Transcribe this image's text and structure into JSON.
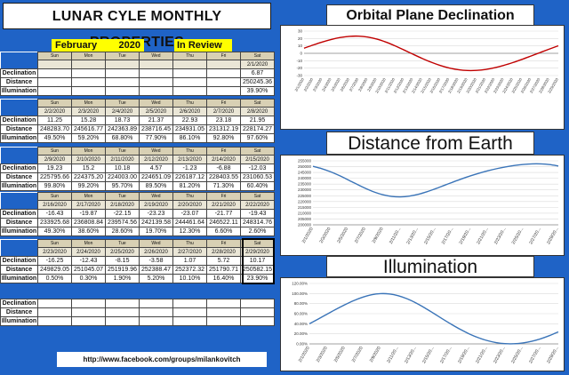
{
  "sheet": {
    "title": "LUNAR CYLE MONTHLY PROPERTIES",
    "month": "February",
    "year": "2020",
    "review_label": "In Review",
    "row_labels": [
      "Declination",
      "Distance",
      "Illumination"
    ],
    "days": [
      "Sun",
      "Mon",
      "Tue",
      "Wed",
      "Thu",
      "Fri",
      "Sat"
    ],
    "weeks": [
      {
        "dates": [
          "",
          "",
          "",
          "",
          "",
          "",
          "2/1/2020"
        ],
        "declination": [
          "",
          "",
          "",
          "",
          "",
          "",
          "6.87"
        ],
        "distance": [
          "",
          "",
          "",
          "",
          "",
          "",
          "250245.36"
        ],
        "illumination": [
          "",
          "",
          "",
          "",
          "",
          "",
          "39.90%"
        ]
      },
      {
        "dates": [
          "2/2/2020",
          "2/3/2020",
          "2/4/2020",
          "2/5/2020",
          "2/6/2020",
          "2/7/2020",
          "2/8/2020"
        ],
        "declination": [
          "11.25",
          "15.28",
          "18.73",
          "21.37",
          "22.93",
          "23.18",
          "21.95"
        ],
        "distance": [
          "248283.70",
          "245616.77",
          "242363.89",
          "238716.45",
          "234931.05",
          "231312.19",
          "228174.27"
        ],
        "illumination": [
          "49.50%",
          "59.20%",
          "68.80%",
          "77.90%",
          "86.10%",
          "92.80%",
          "97.60%"
        ]
      },
      {
        "dates": [
          "2/9/2020",
          "2/10/2020",
          "2/11/2020",
          "2/12/2020",
          "2/13/2020",
          "2/14/2020",
          "2/15/2020"
        ],
        "declination": [
          "19.23",
          "15.2",
          "10.18",
          "4.57",
          "-1.23",
          "-6.88",
          "-12.03"
        ],
        "distance": [
          "225795.66",
          "224375.20",
          "224003.00",
          "224651.09",
          "226187.12",
          "228403.55",
          "231060.53"
        ],
        "illumination": [
          "99.80%",
          "99.20%",
          "95.70%",
          "89.50%",
          "81.20%",
          "71.30%",
          "60.40%"
        ]
      },
      {
        "dates": [
          "2/16/2020",
          "2/17/2020",
          "2/18/2020",
          "2/19/2020",
          "2/20/2020",
          "2/21/2020",
          "2/22/2020"
        ],
        "declination": [
          "-16.43",
          "-19.87",
          "-22.15",
          "-23.23",
          "-23.07",
          "-21.77",
          "-19.43"
        ],
        "distance": [
          "233925.68",
          "236808.84",
          "239574.56",
          "242139.58",
          "244461.64",
          "246522.11",
          "248314.76"
        ],
        "illumination": [
          "49.30%",
          "38.60%",
          "28.60%",
          "19.70%",
          "12.30%",
          "6.60%",
          "2.60%"
        ]
      },
      {
        "dates": [
          "2/23/2020",
          "2/24/2020",
          "2/25/2020",
          "2/26/2020",
          "2/27/2020",
          "2/28/2020",
          "2/29/2020"
        ],
        "declination": [
          "-16.25",
          "-12.43",
          "-8.15",
          "-3.58",
          "1.07",
          "5.72",
          "10.17"
        ],
        "distance": [
          "249829.05",
          "251045.07",
          "251919.96",
          "252388.47",
          "252372.32",
          "251790.71",
          "250582.15"
        ],
        "illumination": [
          "0.50%",
          "0.30%",
          "1.90%",
          "5.20%",
          "10.10%",
          "16.40%",
          "23.90%"
        ]
      }
    ],
    "footer_link": "http://www.facebook.com/groups/milankovitch"
  },
  "chart_data": [
    {
      "type": "line",
      "title": "Orbital Plane Declination",
      "x": [
        "2/1/2020",
        "2/2/2020",
        "2/3/2020",
        "2/4/2020",
        "2/5/2020",
        "2/6/2020",
        "2/7/2020",
        "2/8/2020",
        "2/9/2020",
        "2/10/2020",
        "2/11/2020",
        "2/12/2020",
        "2/13/2020",
        "2/14/2020",
        "2/15/2020",
        "2/16/2020",
        "2/17/2020",
        "2/18/2020",
        "2/19/2020",
        "2/20/2020",
        "2/21/2020",
        "2/22/2020",
        "2/23/2020",
        "2/24/2020",
        "2/25/2020",
        "2/26/2020",
        "2/27/2020",
        "2/28/2020",
        "2/29/2020"
      ],
      "x_tick_labels": [
        "2/1/2020",
        "2/2/2020",
        "2/3/2020",
        "2/4/2020",
        "2/5/2020",
        "2/6/2020",
        "2/7/2020",
        "2/8/2020",
        "2/9/2020",
        "2/10/2020",
        "2/11/2020",
        "2/12/2020",
        "2/13/2020",
        "2/14/2020",
        "2/15/2020",
        "2/16/2020",
        "2/17/2020",
        "2/18/2020",
        "2/19/2020",
        "2/20/2020",
        "2/21/2020",
        "2/22/2020",
        "2/23/2020",
        "2/24/2020",
        "2/25/2020",
        "2/26/2020",
        "2/27/2020",
        "2/28/2020",
        "2/29/2020"
      ],
      "values": [
        6.87,
        11.25,
        15.28,
        18.73,
        21.37,
        22.93,
        23.18,
        21.95,
        19.23,
        15.2,
        10.18,
        4.57,
        -1.23,
        -6.88,
        -12.03,
        -16.43,
        -19.87,
        -22.15,
        -23.23,
        -23.07,
        -21.77,
        -19.43,
        -16.25,
        -12.43,
        -8.15,
        -3.58,
        1.07,
        5.72,
        10.17
      ],
      "ylim": [
        -30,
        30
      ],
      "yticks": [
        -30,
        -20,
        -10,
        0,
        10,
        20,
        30
      ],
      "ytick_labels": [
        "-30",
        "-20",
        "-10",
        "0",
        "10",
        "20",
        "30"
      ],
      "grid": true,
      "legend": "none",
      "color": "#c00000"
    },
    {
      "type": "line",
      "title": "Distance from Earth",
      "x": [
        "2/1/2020",
        "2/2/2020",
        "2/3/2020",
        "2/4/2020",
        "2/5/2020",
        "2/6/2020",
        "2/7/2020",
        "2/8/2020",
        "2/9/2020",
        "2/10/2020",
        "2/11/2020",
        "2/12/2020",
        "2/13/2020",
        "2/14/2020",
        "2/15/2020",
        "2/16/2020",
        "2/17/2020",
        "2/18/2020",
        "2/19/2020",
        "2/20/2020",
        "2/21/2020",
        "2/22/2020",
        "2/23/2020",
        "2/24/2020",
        "2/25/2020",
        "2/26/2020",
        "2/27/2020",
        "2/28/2020",
        "2/29/2020"
      ],
      "x_tick_labels": [
        "2/1/2020",
        "2/3/2020",
        "2/5/2020",
        "2/7/2020",
        "2/9/2020",
        "2/11/20...",
        "2/13/20...",
        "2/15/20...",
        "2/17/20...",
        "2/19/20...",
        "2/21/20...",
        "2/23/20...",
        "2/25/20...",
        "2/27/20...",
        "2/29/20..."
      ],
      "values": [
        250245.36,
        248283.7,
        245616.77,
        242363.89,
        238716.45,
        234931.05,
        231312.19,
        228174.27,
        225795.66,
        224375.2,
        224003.0,
        224651.09,
        226187.12,
        228403.55,
        231060.53,
        233925.68,
        236808.84,
        239574.56,
        242139.58,
        244461.64,
        246522.11,
        248314.76,
        249829.05,
        251045.07,
        251919.96,
        252388.47,
        252372.32,
        251790.71,
        250582.15
      ],
      "ylim": [
        200000,
        255000
      ],
      "yticks": [
        200000,
        205000,
        210000,
        215000,
        220000,
        225000,
        230000,
        235000,
        240000,
        245000,
        250000,
        255000
      ],
      "ytick_labels": [
        "200000",
        "205000",
        "210000",
        "215000",
        "220000",
        "225000",
        "230000",
        "235000",
        "240000",
        "245000",
        "250000",
        "255000"
      ],
      "grid": true,
      "legend": "none",
      "color": "#3a74b8"
    },
    {
      "type": "line",
      "title": "Illumination",
      "x": [
        "2/1/2020",
        "2/2/2020",
        "2/3/2020",
        "2/4/2020",
        "2/5/2020",
        "2/6/2020",
        "2/7/2020",
        "2/8/2020",
        "2/9/2020",
        "2/10/2020",
        "2/11/2020",
        "2/12/2020",
        "2/13/2020",
        "2/14/2020",
        "2/15/2020",
        "2/16/2020",
        "2/17/2020",
        "2/18/2020",
        "2/19/2020",
        "2/20/2020",
        "2/21/2020",
        "2/22/2020",
        "2/23/2020",
        "2/24/2020",
        "2/25/2020",
        "2/26/2020",
        "2/27/2020",
        "2/28/2020",
        "2/29/2020"
      ],
      "x_tick_labels": [
        "2/1/2020",
        "2/3/2020",
        "2/5/2020",
        "2/7/2020",
        "2/9/2020",
        "2/11/20...",
        "2/13/20...",
        "2/15/20...",
        "2/17/20...",
        "2/19/20...",
        "2/21/20...",
        "2/23/20...",
        "2/25/20...",
        "2/27/20...",
        "2/29/20..."
      ],
      "values": [
        39.9,
        49.5,
        59.2,
        68.8,
        77.9,
        86.1,
        92.8,
        97.6,
        99.8,
        99.2,
        95.7,
        89.5,
        81.2,
        71.3,
        60.4,
        49.3,
        38.6,
        28.6,
        19.7,
        12.3,
        6.6,
        2.6,
        0.5,
        0.3,
        1.9,
        5.2,
        10.1,
        16.4,
        23.9
      ],
      "ylim": [
        0,
        120
      ],
      "yticks": [
        0,
        20,
        40,
        60,
        80,
        100,
        120
      ],
      "ytick_labels": [
        "0.00%",
        "20.00%",
        "40.00%",
        "60.00%",
        "80.00%",
        "100.00%",
        "120.00%"
      ],
      "grid": true,
      "legend": "none",
      "color": "#3a74b8"
    }
  ]
}
